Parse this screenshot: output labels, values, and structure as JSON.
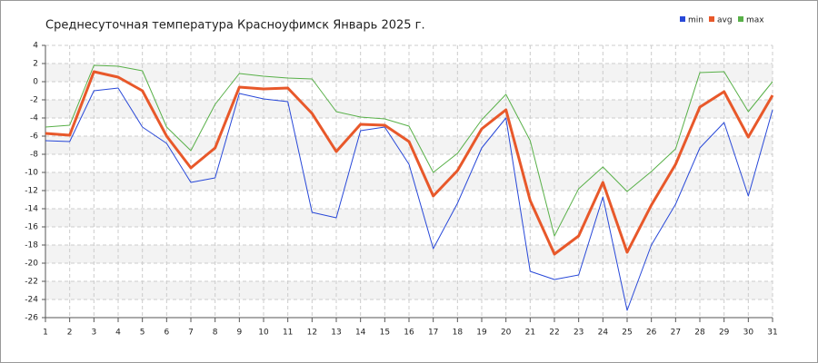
{
  "chart_data": {
    "type": "line",
    "title": "Среднесуточная температура Красноуфимск  Январь 2025 г.",
    "x": [
      1,
      2,
      3,
      4,
      5,
      6,
      7,
      8,
      9,
      10,
      11,
      12,
      13,
      14,
      15,
      16,
      17,
      18,
      19,
      20,
      21,
      22,
      23,
      24,
      25,
      26,
      27,
      28,
      29,
      30,
      31
    ],
    "xlim": [
      1,
      31
    ],
    "xticks": [
      1,
      2,
      3,
      4,
      5,
      6,
      7,
      8,
      9,
      10,
      11,
      12,
      13,
      14,
      15,
      16,
      17,
      18,
      19,
      20,
      21,
      22,
      23,
      24,
      25,
      26,
      27,
      28,
      29,
      30,
      31
    ],
    "ylim": [
      -26,
      4
    ],
    "yticks": [
      4,
      2,
      0,
      -2,
      -4,
      -6,
      -8,
      -10,
      -12,
      -14,
      -16,
      -18,
      -20,
      -22,
      -24,
      -26
    ],
    "grid": true,
    "legend": "top-right",
    "series": [
      {
        "name": "min",
        "color": "#2848d8",
        "values": [
          -6.5,
          -6.6,
          -1.0,
          -0.7,
          -5.0,
          -6.8,
          -11.1,
          -10.6,
          -1.3,
          -1.9,
          -2.2,
          -14.4,
          -15.0,
          -5.4,
          -5.0,
          -9.1,
          -18.4,
          -13.4,
          -7.3,
          -4.0,
          -20.9,
          -21.8,
          -21.3,
          -12.7,
          -25.2,
          -18.0,
          -13.5,
          -7.3,
          -4.5,
          -12.6,
          -3.1
        ]
      },
      {
        "name": "avg",
        "color": "#e8582a",
        "values": [
          -5.7,
          -5.9,
          1.1,
          0.5,
          -1.0,
          -6.0,
          -9.5,
          -7.3,
          -0.6,
          -0.8,
          -0.7,
          -3.5,
          -7.7,
          -4.7,
          -4.8,
          -6.6,
          -12.6,
          -9.8,
          -5.2,
          -3.1,
          -13.1,
          -19.0,
          -17.0,
          -11.1,
          -18.8,
          -13.6,
          -9.1,
          -2.8,
          -1.1,
          -6.1,
          -1.5
        ]
      },
      {
        "name": "max",
        "color": "#58b048",
        "values": [
          -5.0,
          -4.8,
          1.8,
          1.7,
          1.2,
          -5.0,
          -7.6,
          -2.5,
          0.9,
          0.6,
          0.4,
          0.3,
          -3.3,
          -3.9,
          -4.1,
          -4.9,
          -10.0,
          -7.9,
          -4.2,
          -1.4,
          -6.5,
          -17.0,
          -11.8,
          -9.4,
          -12.1,
          -9.9,
          -7.4,
          1.0,
          1.1,
          -3.3,
          0.0
        ]
      }
    ]
  }
}
